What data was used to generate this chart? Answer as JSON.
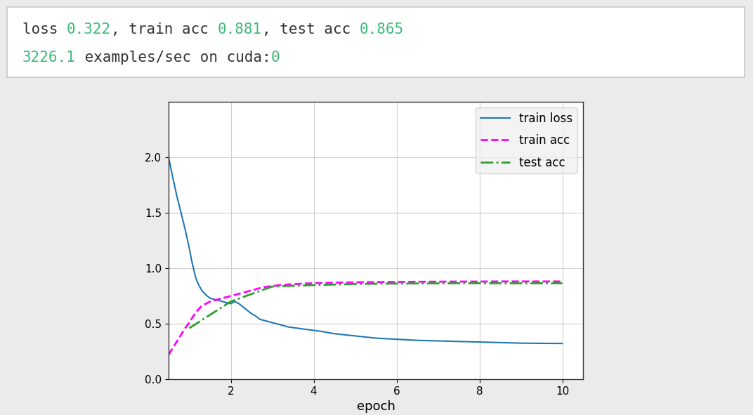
{
  "xlabel": "epoch",
  "xlim": [
    0.5,
    10.5
  ],
  "ylim": [
    0.0,
    2.5
  ],
  "yticks": [
    0.0,
    0.5,
    1.0,
    1.5,
    2.0
  ],
  "xticks": [
    2,
    4,
    6,
    8,
    10
  ],
  "background_color": "#ebebeb",
  "plot_bg_color": "#ffffff",
  "text_box_bg": "#ffffff",
  "text_box_border": "#c8c8c8",
  "train_loss_color": "#1f77b4",
  "train_acc_color": "#ff00ff",
  "test_acc_color": "#2ca02c",
  "dark_text_color": "#333333",
  "green_number_color": "#3dba78",
  "line1_parts": [
    [
      "loss ",
      "#333333"
    ],
    [
      "0.322",
      "#3dba78"
    ],
    [
      ", train acc ",
      "#333333"
    ],
    [
      "0.881",
      "#3dba78"
    ],
    [
      ", test acc ",
      "#333333"
    ],
    [
      "0.865",
      "#3dba78"
    ]
  ],
  "line2_parts": [
    [
      "3226.1",
      "#3dba78"
    ],
    [
      " examples/sec on cuda:",
      "#333333"
    ],
    [
      "0",
      "#3dba78"
    ]
  ],
  "train_loss_data_x": [
    0.5,
    0.6,
    0.7,
    0.8,
    0.9,
    1.0,
    1.05,
    1.1,
    1.15,
    1.2,
    1.3,
    1.4,
    1.5,
    1.6,
    1.7,
    1.8,
    1.9,
    2.0,
    2.1,
    2.2,
    2.3,
    2.4,
    2.5,
    2.6,
    2.7,
    2.8,
    2.9,
    3.0,
    3.2,
    3.4,
    3.6,
    3.8,
    4.0,
    4.2,
    4.5,
    5.0,
    5.5,
    6.0,
    6.5,
    7.0,
    7.5,
    8.0,
    8.5,
    9.0,
    9.5,
    10.0
  ],
  "train_loss_data_y": [
    2.0,
    1.82,
    1.65,
    1.5,
    1.35,
    1.18,
    1.08,
    1.0,
    0.92,
    0.87,
    0.8,
    0.76,
    0.73,
    0.72,
    0.71,
    0.7,
    0.69,
    0.68,
    0.7,
    0.68,
    0.65,
    0.62,
    0.59,
    0.57,
    0.54,
    0.53,
    0.52,
    0.51,
    0.49,
    0.47,
    0.46,
    0.45,
    0.44,
    0.43,
    0.41,
    0.39,
    0.37,
    0.36,
    0.35,
    0.345,
    0.34,
    0.335,
    0.33,
    0.325,
    0.323,
    0.322
  ],
  "train_acc_data_x": [
    0.5,
    0.6,
    0.7,
    0.8,
    0.9,
    1.0,
    1.05,
    1.1,
    1.15,
    1.2,
    1.3,
    1.4,
    1.5,
    1.6,
    1.7,
    1.8,
    1.9,
    2.0,
    2.1,
    2.2,
    2.3,
    2.4,
    2.5,
    2.6,
    2.7,
    2.8,
    2.9,
    3.0,
    3.2,
    3.4,
    3.6,
    3.8,
    4.0,
    4.5,
    5.0,
    5.5,
    6.0,
    6.5,
    7.0,
    7.5,
    8.0,
    8.5,
    9.0,
    9.5,
    10.0
  ],
  "train_acc_data_y": [
    0.22,
    0.28,
    0.34,
    0.4,
    0.46,
    0.51,
    0.54,
    0.57,
    0.6,
    0.62,
    0.66,
    0.68,
    0.7,
    0.71,
    0.72,
    0.73,
    0.74,
    0.75,
    0.76,
    0.77,
    0.78,
    0.79,
    0.8,
    0.81,
    0.82,
    0.83,
    0.835,
    0.84,
    0.848,
    0.854,
    0.858,
    0.862,
    0.865,
    0.87,
    0.873,
    0.875,
    0.877,
    0.878,
    0.879,
    0.88,
    0.88,
    0.881,
    0.881,
    0.881,
    0.881
  ],
  "test_acc_data_x": [
    1.0,
    2.0,
    3.0,
    4.0,
    5.0,
    6.0,
    7.0,
    8.0,
    9.0,
    10.0
  ],
  "test_acc_data_y": [
    0.46,
    0.7,
    0.835,
    0.848,
    0.858,
    0.862,
    0.864,
    0.865,
    0.864,
    0.865
  ]
}
